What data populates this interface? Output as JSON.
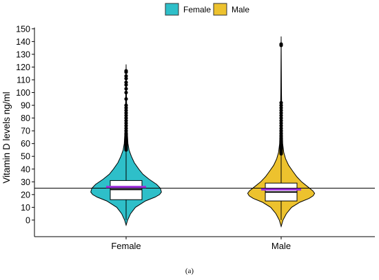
{
  "caption": "(a)",
  "chart_data": {
    "type": "violin",
    "ylabel": "Vitamin D levels ng/ml",
    "xlabel": "",
    "ylim": [
      -13,
      151
    ],
    "yticks": [
      0,
      10,
      20,
      30,
      40,
      50,
      60,
      70,
      80,
      90,
      100,
      110,
      120,
      130,
      140,
      150
    ],
    "categories": [
      "Female",
      "Male"
    ],
    "legend": {
      "position": "top",
      "entries": [
        {
          "name": "Female",
          "color": "#2ebfc9"
        },
        {
          "name": "Male",
          "color": "#edc22e"
        }
      ]
    },
    "reference_line": 25,
    "series": [
      {
        "name": "Female",
        "color": "#2ebfc9",
        "violin_min": -4,
        "violin_max": 122,
        "violin_shape": [
          [
            -4,
            0.0
          ],
          [
            0,
            0.04
          ],
          [
            5,
            0.12
          ],
          [
            10,
            0.25
          ],
          [
            15,
            0.52
          ],
          [
            18,
            0.78
          ],
          [
            20,
            0.9
          ],
          [
            22,
            0.95
          ],
          [
            25,
            0.92
          ],
          [
            28,
            0.82
          ],
          [
            32,
            0.62
          ],
          [
            36,
            0.45
          ],
          [
            40,
            0.34
          ],
          [
            45,
            0.22
          ],
          [
            50,
            0.14
          ],
          [
            55,
            0.08
          ],
          [
            60,
            0.05
          ],
          [
            70,
            0.03
          ],
          [
            80,
            0.02
          ],
          [
            100,
            0.01
          ],
          [
            122,
            0.0
          ]
        ],
        "box": {
          "q1": 16,
          "median": 24,
          "q3": 31,
          "whisker_low": 0,
          "whisker_high": 54
        },
        "mean": 26,
        "outliers": [
          55,
          56,
          57,
          58,
          59,
          60,
          61,
          62,
          63,
          64,
          65,
          66,
          67,
          68,
          70,
          72,
          74,
          76,
          78,
          80,
          82,
          84,
          86,
          88,
          90,
          95,
          100,
          103,
          106,
          108,
          111,
          113,
          116,
          117
        ]
      },
      {
        "name": "Male",
        "color": "#edc22e",
        "violin_min": -5,
        "violin_max": 144,
        "violin_shape": [
          [
            -5,
            0.0
          ],
          [
            0,
            0.05
          ],
          [
            5,
            0.14
          ],
          [
            10,
            0.28
          ],
          [
            14,
            0.5
          ],
          [
            17,
            0.75
          ],
          [
            19,
            0.86
          ],
          [
            21,
            0.9
          ],
          [
            23,
            0.85
          ],
          [
            26,
            0.72
          ],
          [
            30,
            0.55
          ],
          [
            34,
            0.42
          ],
          [
            38,
            0.32
          ],
          [
            43,
            0.2
          ],
          [
            48,
            0.12
          ],
          [
            53,
            0.07
          ],
          [
            60,
            0.04
          ],
          [
            80,
            0.02
          ],
          [
            100,
            0.01
          ],
          [
            144,
            0.0
          ]
        ],
        "box": {
          "q1": 15,
          "median": 22,
          "q3": 29,
          "whisker_low": 0,
          "whisker_high": 51
        },
        "mean": 24,
        "outliers": [
          52,
          53,
          54,
          55,
          56,
          57,
          58,
          59,
          60,
          61,
          62,
          64,
          66,
          68,
          70,
          72,
          74,
          76,
          78,
          80,
          82,
          84,
          86,
          88,
          90,
          92,
          137,
          138
        ]
      }
    ]
  }
}
